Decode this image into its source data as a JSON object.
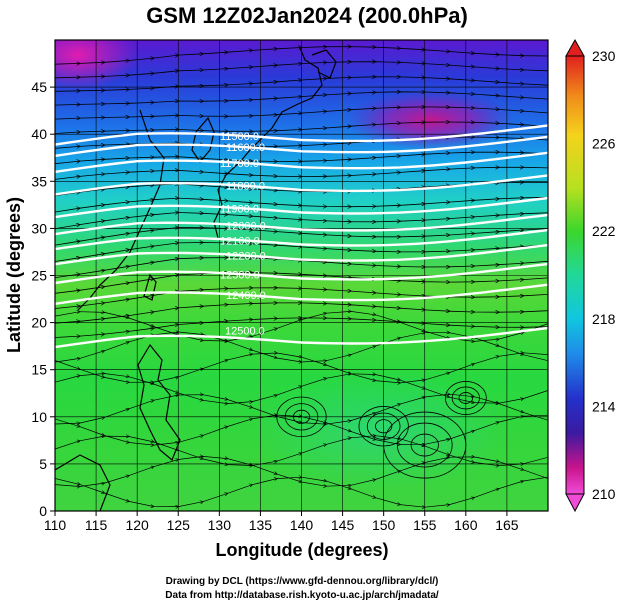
{
  "title": "GSM 12Z02Jan2024 (200.0hPa)",
  "xlabel": "Longitude (degrees)",
  "ylabel": "Latitude (degrees)",
  "credits": [
    "Drawing by DCL (https://www.gfd-dennou.org/library/dcl/)",
    "Data from http://database.rish.kyoto-u.ac.jp/arch/jmadata/"
  ],
  "x_ticks": [
    "110",
    "115",
    "120",
    "125",
    "130",
    "135",
    "140",
    "145",
    "150",
    "155",
    "160",
    "165"
  ],
  "y_ticks": [
    "0",
    "5",
    "10",
    "15",
    "20",
    "25",
    "30",
    "35",
    "40",
    "45"
  ],
  "colorbar": {
    "ticks": [
      "230",
      "226",
      "222",
      "218",
      "214",
      "210"
    ],
    "colors": [
      "#e0201e",
      "#f08a1a",
      "#f5d21c",
      "#b8e020",
      "#3cd62c",
      "#21d899",
      "#10c6e0",
      "#1f8ce8",
      "#2432cc",
      "#3a1aa0",
      "#c8148c",
      "#f04cd8"
    ]
  },
  "contour_labels": [
    {
      "text": "11500.0"
    },
    {
      "text": "11600.0"
    },
    {
      "text": "11700.0"
    },
    {
      "text": "11800.0"
    },
    {
      "text": "11900.0"
    },
    {
      "text": "12000.0"
    },
    {
      "text": "12100.0"
    },
    {
      "text": "12200.0"
    },
    {
      "text": "12300.0"
    },
    {
      "text": "12400.0"
    },
    {
      "text": "12500.0"
    }
  ],
  "chart_data": {
    "type": "heatmap",
    "title": "GSM 12Z02Jan2024 (200.0hPa)",
    "xlabel": "Longitude (degrees)",
    "ylabel": "Latitude (degrees)",
    "xlim": [
      110,
      170
    ],
    "ylim": [
      0,
      50
    ],
    "x_ticks": [
      110,
      115,
      120,
      125,
      130,
      135,
      140,
      145,
      150,
      155,
      160,
      165
    ],
    "y_ticks": [
      0,
      5,
      10,
      15,
      20,
      25,
      30,
      35,
      40,
      45
    ],
    "colorbar": {
      "min": 210,
      "max": 230,
      "ticks": [
        210,
        214,
        218,
        222,
        226,
        230
      ]
    },
    "geopotential_height_contours": [
      11500,
      11600,
      11700,
      11800,
      11900,
      12000,
      12100,
      12200,
      12300,
      12400,
      12500
    ],
    "overlay": "wind streamlines",
    "grid": true
  }
}
